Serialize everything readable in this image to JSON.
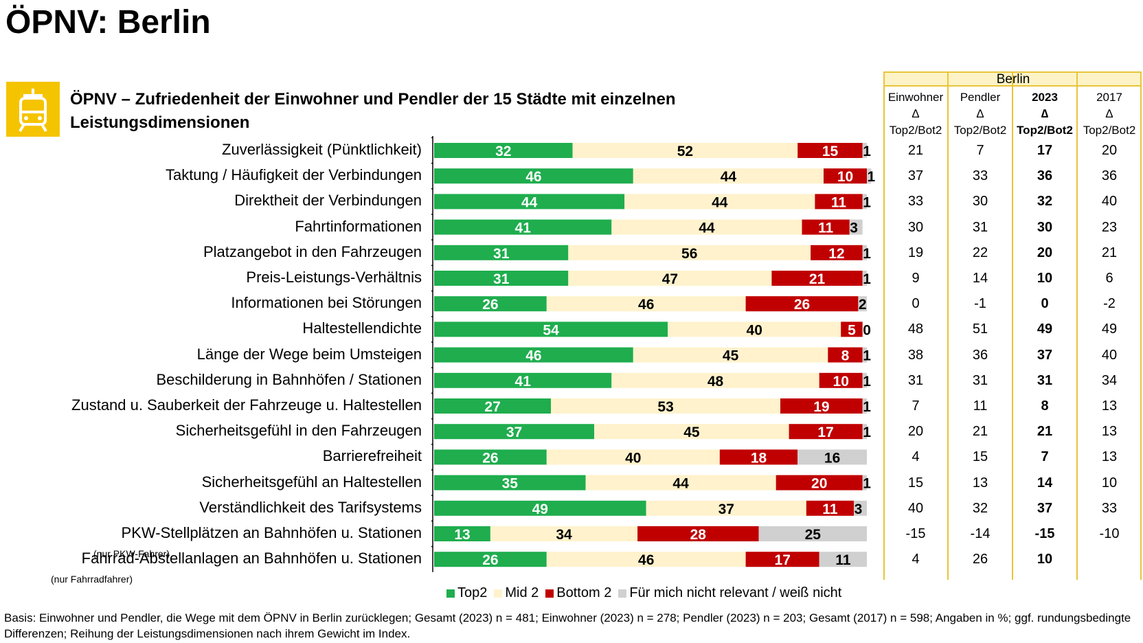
{
  "page": {
    "title": "ÖPNV: Berlin",
    "subtitle_line1": "ÖPNV – Zufriedenheit der Einwohner und Pendler der 15 Städte mit einzelnen",
    "subtitle_line2": "Leistungsdimensionen",
    "icon": "tram-icon"
  },
  "colors": {
    "top2": "#1FAD4E",
    "mid2": "#FFF2CC",
    "bottom2": "#C00000",
    "na": "#D0D0D0",
    "accent": "#F5C400",
    "table_border": "#E8C53A"
  },
  "chart_data": {
    "type": "bar",
    "orientation": "horizontal-stacked-100",
    "categories": [
      "Zuverlässigkeit (Pünktlichkeit)",
      "Taktung / Häufigkeit der Verbindungen",
      "Direktheit der Verbindungen",
      "Fahrtinformationen",
      "Platzangebot in den Fahrzeugen",
      "Preis-Leistungs-Verhältnis",
      "Informationen bei Störungen",
      "Haltestellendichte",
      "Länge der Wege beim Umsteigen",
      "Beschilderung in Bahnhöfen / Stationen",
      "Zustand u. Sauberkeit der Fahrzeuge u. Haltestellen",
      "Sicherheitsgefühl in den Fahrzeugen",
      "Barrierefreiheit",
      "Sicherheitsgefühl an Haltestellen",
      "Verständlichkeit des Tarifsystems",
      "PKW-Stellplätzen an Bahnhöfen u. Stationen",
      "Fahrrad-Abstellanlagen an Bahnhöfen u. Stationen"
    ],
    "category_notes": [
      "",
      "",
      "",
      "",
      "",
      "",
      "",
      "",
      "",
      "",
      "",
      "",
      "",
      "",
      "",
      "(nur PKW-Fahrer)",
      "(nur Fahrradfahrer)"
    ],
    "series": [
      {
        "name": "Top2",
        "values": [
          32,
          46,
          44,
          41,
          31,
          31,
          26,
          54,
          46,
          41,
          27,
          37,
          26,
          35,
          49,
          13,
          26
        ]
      },
      {
        "name": "Mid 2",
        "values": [
          52,
          44,
          44,
          44,
          56,
          47,
          46,
          40,
          45,
          48,
          53,
          45,
          40,
          44,
          37,
          34,
          46
        ]
      },
      {
        "name": "Bottom 2",
        "values": [
          15,
          10,
          11,
          11,
          12,
          21,
          26,
          5,
          8,
          10,
          19,
          17,
          18,
          20,
          11,
          28,
          17
        ]
      },
      {
        "name": "Für mich nicht relevant / weiß nicht",
        "values": [
          1,
          1,
          1,
          3,
          1,
          1,
          2,
          0,
          1,
          1,
          1,
          1,
          16,
          1,
          3,
          25,
          11
        ]
      }
    ],
    "unit": "%",
    "xlim": [
      0,
      100
    ],
    "legend_position": "bottom"
  },
  "table": {
    "city": "Berlin",
    "columns": [
      {
        "line1": "Einwohner",
        "line2": "∆",
        "line3": "Top2/Bot2",
        "bold": false
      },
      {
        "line1": "Pendler",
        "line2": "∆",
        "line3": "Top2/Bot2",
        "bold": false
      },
      {
        "line1": "2023",
        "line2": "∆",
        "line3": "Top2/Bot2",
        "bold": true
      },
      {
        "line1": "2017",
        "line2": "∆",
        "line3": "Top2/Bot2",
        "bold": false
      }
    ],
    "rows": [
      [
        "21",
        "7",
        "17",
        "20"
      ],
      [
        "37",
        "33",
        "36",
        "36"
      ],
      [
        "33",
        "30",
        "32",
        "40"
      ],
      [
        "30",
        "31",
        "30",
        "23"
      ],
      [
        "19",
        "22",
        "20",
        "21"
      ],
      [
        "9",
        "14",
        "10",
        "6"
      ],
      [
        "0",
        "-1",
        "0",
        "-2"
      ],
      [
        "48",
        "51",
        "49",
        "49"
      ],
      [
        "38",
        "36",
        "37",
        "40"
      ],
      [
        "31",
        "31",
        "31",
        "34"
      ],
      [
        "7",
        "11",
        "8",
        "13"
      ],
      [
        "20",
        "21",
        "21",
        "13"
      ],
      [
        "4",
        "15",
        "7",
        "13"
      ],
      [
        "15",
        "13",
        "14",
        "10"
      ],
      [
        "40",
        "32",
        "37",
        "33"
      ],
      [
        "-15",
        "-14",
        "-15",
        "-10"
      ],
      [
        "4",
        "26",
        "10",
        ""
      ]
    ]
  },
  "legend": [
    "Top2",
    "Mid 2",
    "Bottom 2",
    "Für mich nicht relevant / weiß nicht"
  ],
  "footer": {
    "line1": "Basis: Einwohner und Pendler, die Wege mit dem ÖPNV in Berlin zurücklegen; Gesamt (2023) n = 481; Einwohner (2023) n = 278; Pendler (2023) n = 203; Gesamt (2017) n = 598; Angaben in %; ggf. rundungsbedingte",
    "line2": "Differenzen; Reihung der Leistungsdimensionen nach ihrem Gewicht im Index."
  }
}
